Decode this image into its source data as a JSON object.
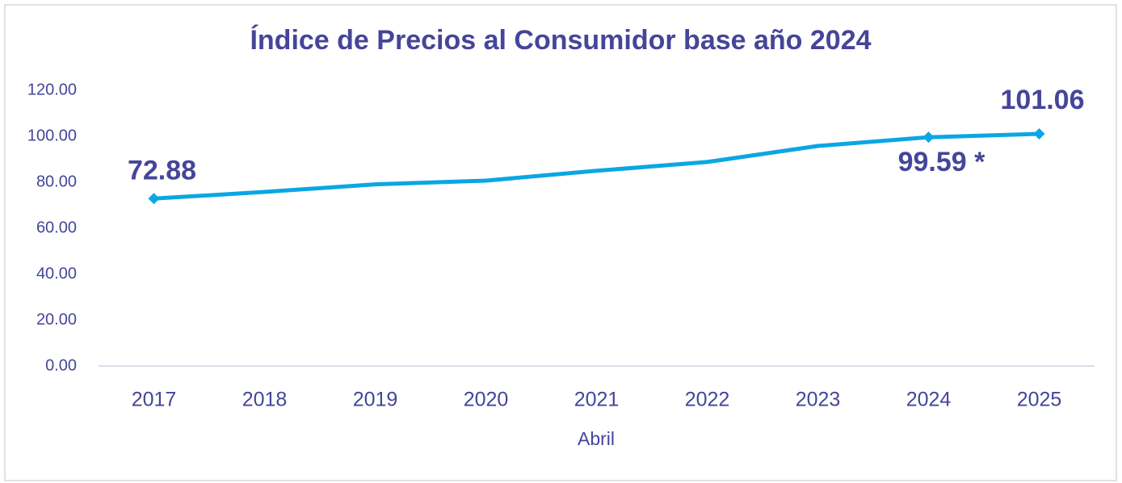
{
  "chart_data": {
    "type": "line",
    "title": "Índice de Precios al Consumidor base año 2024",
    "x_label": "Abril",
    "categories": [
      "2017",
      "2018",
      "2019",
      "2020",
      "2021",
      "2022",
      "2023",
      "2024",
      "2025"
    ],
    "values": [
      72.88,
      75.8,
      79.1,
      80.7,
      85.0,
      88.8,
      95.8,
      99.59,
      101.06
    ],
    "value_labels": [
      "72.88",
      null,
      null,
      null,
      null,
      null,
      null,
      "99.59 *",
      "101.06"
    ],
    "color": "#0aa7e2",
    "ylim": [
      0,
      120
    ],
    "yticks": [
      {
        "value": 0,
        "label": "0.00"
      },
      {
        "value": 20,
        "label": "20.00"
      },
      {
        "value": 40,
        "label": "40.00"
      },
      {
        "value": 60,
        "label": "60.00"
      },
      {
        "value": 80,
        "label": "80.00"
      },
      {
        "value": 100,
        "label": "100.00"
      },
      {
        "value": 120,
        "label": "120.00"
      }
    ],
    "grid": false
  }
}
